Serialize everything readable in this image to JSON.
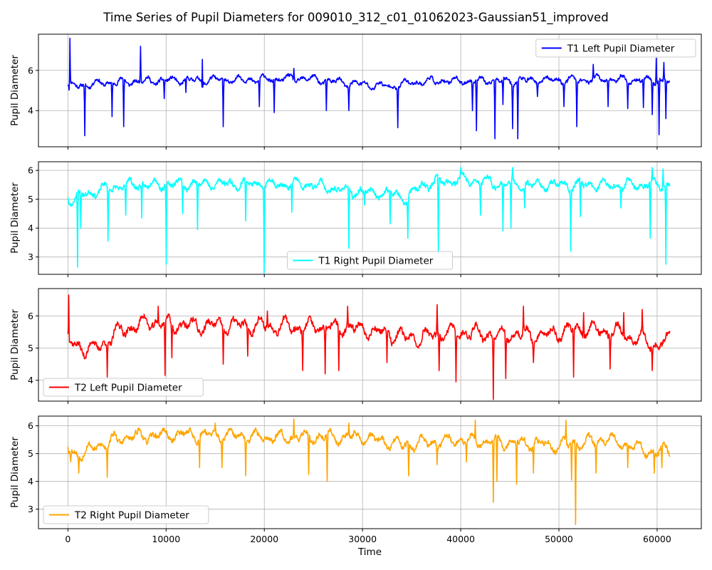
{
  "figure": {
    "title": "Time Series of Pupil Diameters for 009010_312_c01_01062023-Gaussian51_improved"
  },
  "chart_data": [
    {
      "type": "line",
      "ylabel": "Pupil Diameter",
      "xlim": [
        -3000,
        64500
      ],
      "ylim": [
        2.2,
        7.8
      ],
      "yticks": [
        4,
        6
      ],
      "xticks": [
        0,
        10000,
        20000,
        30000,
        40000,
        50000,
        60000
      ],
      "grid": true,
      "legend_position": "upper right",
      "series": [
        {
          "name": "T1 Left Pupil Diameter",
          "color": "#0000ff",
          "seed": 11,
          "base": 5.45,
          "amp": 0.22,
          "noise": 0.14,
          "x_max": 61300,
          "anchors": [
            [
              0,
              5.2
            ],
            [
              2000,
              5.3
            ],
            [
              4000,
              5.4
            ],
            [
              10000,
              5.5
            ],
            [
              20000,
              5.55
            ],
            [
              24000,
              5.6
            ],
            [
              28000,
              5.4
            ],
            [
              30000,
              5.3
            ],
            [
              33000,
              5.2
            ],
            [
              34500,
              5.35
            ],
            [
              36000,
              5.45
            ],
            [
              45000,
              5.5
            ],
            [
              55000,
              5.55
            ],
            [
              60000,
              5.5
            ],
            [
              61300,
              5.4
            ]
          ],
          "dips": [
            [
              150,
              4.6
            ],
            [
              1700,
              2.75
            ],
            [
              4500,
              3.7
            ],
            [
              5700,
              3.2
            ],
            [
              9800,
              4.6
            ],
            [
              12000,
              4.9
            ],
            [
              13700,
              2.5
            ],
            [
              15800,
              3.2
            ],
            [
              19500,
              4.2
            ],
            [
              21000,
              3.9
            ],
            [
              26300,
              4.0
            ],
            [
              28600,
              4.0
            ],
            [
              33600,
              3.15
            ],
            [
              41200,
              4.0
            ],
            [
              41600,
              3.0
            ],
            [
              43500,
              2.6
            ],
            [
              44300,
              4.3
            ],
            [
              45300,
              3.1
            ],
            [
              45800,
              2.6
            ],
            [
              47800,
              4.7
            ],
            [
              50500,
              4.2
            ],
            [
              51800,
              3.2
            ],
            [
              55000,
              4.2
            ],
            [
              57000,
              4.1
            ],
            [
              58600,
              4.15
            ],
            [
              59500,
              3.8
            ],
            [
              60200,
              2.8
            ],
            [
              60900,
              3.6
            ]
          ],
          "spikes": [
            [
              200,
              7.6
            ],
            [
              7400,
              7.2
            ],
            [
              13700,
              6.55
            ],
            [
              23000,
              6.1
            ],
            [
              53500,
              6.3
            ],
            [
              59900,
              6.6
            ],
            [
              60700,
              6.4
            ]
          ]
        }
      ]
    },
    {
      "type": "line",
      "ylabel": "Pupil Diameter",
      "xlim": [
        -3000,
        64500
      ],
      "ylim": [
        2.4,
        6.3
      ],
      "yticks": [
        3,
        4,
        5,
        6
      ],
      "xticks": [
        0,
        10000,
        20000,
        30000,
        40000,
        50000,
        60000
      ],
      "grid": true,
      "legend_position": "lower center",
      "series": [
        {
          "name": "T1 Right Pupil Diameter",
          "color": "#00ffff",
          "seed": 23,
          "base": 5.45,
          "amp": 0.22,
          "noise": 0.14,
          "x_max": 61300,
          "anchors": [
            [
              0,
              4.95
            ],
            [
              1000,
              5.1
            ],
            [
              3000,
              5.3
            ],
            [
              6000,
              5.5
            ],
            [
              15000,
              5.55
            ],
            [
              25000,
              5.5
            ],
            [
              28000,
              5.3
            ],
            [
              30000,
              5.25
            ],
            [
              33000,
              5.2
            ],
            [
              34500,
              5.0
            ],
            [
              36000,
              5.5
            ],
            [
              40000,
              5.7
            ],
            [
              45000,
              5.5
            ],
            [
              55000,
              5.5
            ],
            [
              61300,
              5.5
            ]
          ],
          "dips": [
            [
              1000,
              2.65
            ],
            [
              1300,
              4.0
            ],
            [
              4100,
              3.55
            ],
            [
              5900,
              4.45
            ],
            [
              7500,
              4.35
            ],
            [
              10000,
              2.75
            ],
            [
              11700,
              4.5
            ],
            [
              13200,
              3.95
            ],
            [
              18100,
              4.25
            ],
            [
              20000,
              2.45
            ],
            [
              22800,
              4.55
            ],
            [
              28600,
              3.3
            ],
            [
              30200,
              4.8
            ],
            [
              32800,
              4.15
            ],
            [
              34600,
              3.65
            ],
            [
              37700,
              3.1
            ],
            [
              42000,
              4.45
            ],
            [
              44300,
              3.9
            ],
            [
              45100,
              4.0
            ],
            [
              46500,
              4.7
            ],
            [
              51200,
              3.2
            ],
            [
              52200,
              4.4
            ],
            [
              56300,
              4.7
            ],
            [
              59300,
              3.65
            ],
            [
              60900,
              2.75
            ]
          ],
          "spikes": [
            [
              40000,
              6.1
            ],
            [
              45300,
              6.1
            ],
            [
              59500,
              6.1
            ],
            [
              60600,
              6.05
            ]
          ]
        }
      ]
    },
    {
      "type": "line",
      "ylabel": "Pupil Diameter",
      "xlim": [
        -3000,
        64500
      ],
      "ylim": [
        3.35,
        6.85
      ],
      "yticks": [
        4,
        5,
        6
      ],
      "xticks": [
        0,
        10000,
        20000,
        30000,
        40000,
        50000,
        60000
      ],
      "grid": true,
      "legend_position": "lower left",
      "series": [
        {
          "name": "T2 Left Pupil Diameter",
          "color": "#ff0000",
          "seed": 37,
          "base": 5.6,
          "amp": 0.28,
          "noise": 0.16,
          "x_max": 61300,
          "anchors": [
            [
              0,
              5.2
            ],
            [
              1500,
              5.0
            ],
            [
              3000,
              5.0
            ],
            [
              5000,
              5.5
            ],
            [
              8000,
              5.8
            ],
            [
              12000,
              5.7
            ],
            [
              20000,
              5.7
            ],
            [
              30000,
              5.6
            ],
            [
              35000,
              5.3
            ],
            [
              40000,
              5.5
            ],
            [
              45000,
              5.4
            ],
            [
              48000,
              5.4
            ],
            [
              52000,
              5.6
            ],
            [
              56000,
              5.5
            ],
            [
              60000,
              5.1
            ],
            [
              61300,
              5.3
            ]
          ],
          "dips": [
            [
              100,
              4.7
            ],
            [
              4000,
              4.1
            ],
            [
              9900,
              4.15
            ],
            [
              10600,
              4.7
            ],
            [
              15800,
              4.5
            ],
            [
              18300,
              4.75
            ],
            [
              23900,
              4.3
            ],
            [
              26200,
              4.2
            ],
            [
              27600,
              4.3
            ],
            [
              32500,
              4.55
            ],
            [
              37800,
              4.3
            ],
            [
              39500,
              3.95
            ],
            [
              43300,
              3.4
            ],
            [
              44600,
              4.05
            ],
            [
              47400,
              4.55
            ],
            [
              51500,
              4.1
            ],
            [
              55200,
              4.35
            ],
            [
              59500,
              4.3
            ]
          ],
          "spikes": [
            [
              100,
              6.65
            ],
            [
              9200,
              6.3
            ],
            [
              20300,
              6.15
            ],
            [
              28500,
              6.3
            ],
            [
              37600,
              6.35
            ],
            [
              46400,
              6.3
            ],
            [
              52500,
              6.1
            ],
            [
              56600,
              6.1
            ],
            [
              58500,
              6.2
            ]
          ]
        }
      ]
    },
    {
      "type": "line",
      "ylabel": "Pupil Diameter",
      "xlabel": "Time",
      "xlim": [
        -3000,
        64500
      ],
      "ylim": [
        2.3,
        6.35
      ],
      "yticks": [
        3,
        4,
        5,
        6
      ],
      "xticks": [
        0,
        10000,
        20000,
        30000,
        40000,
        50000,
        60000
      ],
      "grid": true,
      "legend_position": "lower left",
      "series": [
        {
          "name": "T2 Right Pupil Diameter",
          "color": "#ffa500",
          "seed": 53,
          "base": 5.55,
          "amp": 0.26,
          "noise": 0.16,
          "x_max": 61300,
          "anchors": [
            [
              0,
              5.1
            ],
            [
              1500,
              5.0
            ],
            [
              3000,
              5.3
            ],
            [
              6000,
              5.6
            ],
            [
              12000,
              5.7
            ],
            [
              20000,
              5.6
            ],
            [
              30000,
              5.6
            ],
            [
              34000,
              5.3
            ],
            [
              40000,
              5.5
            ],
            [
              45000,
              5.4
            ],
            [
              50000,
              5.3
            ],
            [
              55000,
              5.5
            ],
            [
              60000,
              5.0
            ],
            [
              61300,
              5.2
            ]
          ],
          "dips": [
            [
              300,
              4.7
            ],
            [
              1100,
              4.3
            ],
            [
              4000,
              4.15
            ],
            [
              13400,
              4.5
            ],
            [
              15700,
              4.5
            ],
            [
              18100,
              4.2
            ],
            [
              24500,
              4.25
            ],
            [
              26400,
              4.0
            ],
            [
              34700,
              4.2
            ],
            [
              37600,
              4.6
            ],
            [
              40600,
              4.7
            ],
            [
              43300,
              3.25
            ],
            [
              43700,
              4.0
            ],
            [
              45700,
              3.9
            ],
            [
              47400,
              4.3
            ],
            [
              51300,
              4.05
            ],
            [
              51700,
              2.45
            ],
            [
              53800,
              4.3
            ],
            [
              57000,
              4.5
            ],
            [
              59700,
              4.3
            ],
            [
              60500,
              4.5
            ]
          ],
          "spikes": [
            [
              15000,
              6.1
            ],
            [
              23000,
              6.25
            ],
            [
              28600,
              6.1
            ],
            [
              41500,
              6.2
            ],
            [
              50700,
              6.2
            ]
          ]
        }
      ]
    }
  ]
}
